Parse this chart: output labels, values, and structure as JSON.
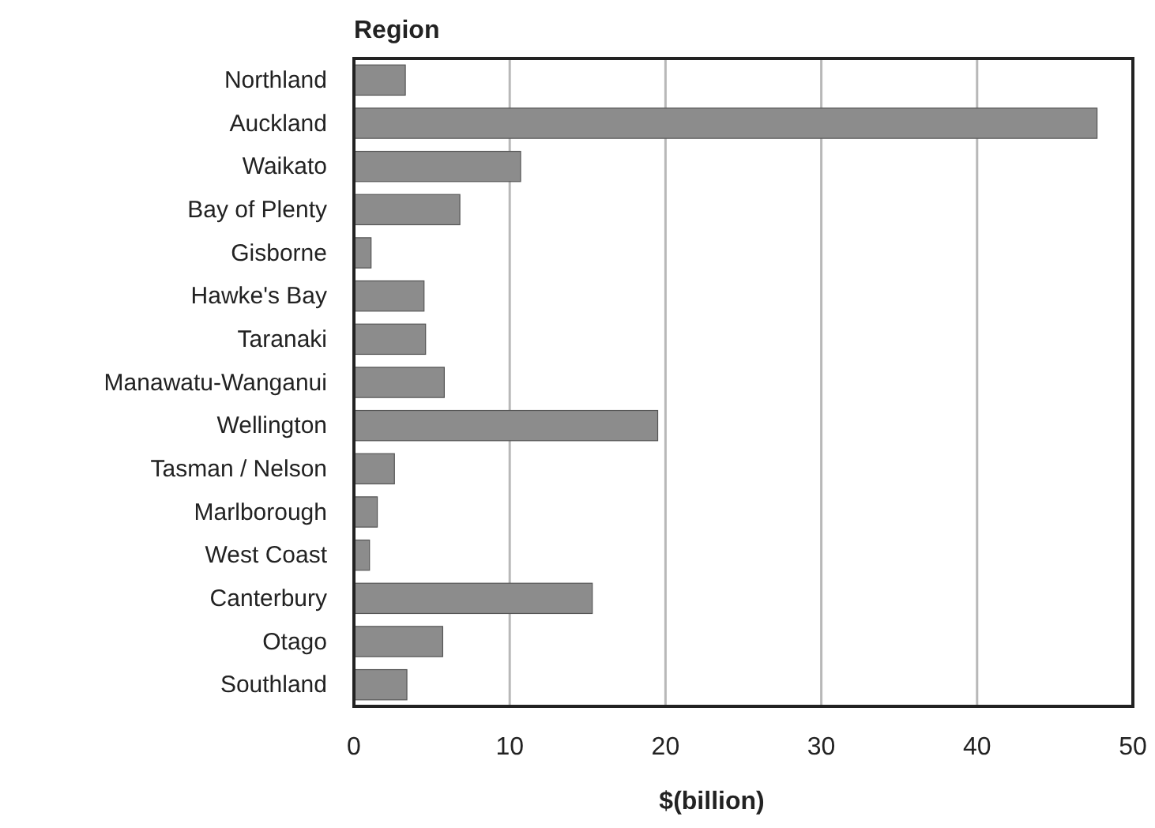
{
  "chart_data": {
    "type": "bar",
    "orientation": "horizontal",
    "title": "Region",
    "xlabel": "$(billion)",
    "categories": [
      "Northland",
      "Auckland",
      "Waikato",
      "Bay of Plenty",
      "Gisborne",
      "Hawke's Bay",
      "Taranaki",
      "Manawatu-Wanganui",
      "Wellington",
      "Tasman / Nelson",
      "Marlborough",
      "West Coast",
      "Canterbury",
      "Otago",
      "Southland"
    ],
    "values": [
      3.3,
      47.7,
      10.7,
      6.8,
      1.1,
      4.5,
      4.6,
      5.8,
      19.5,
      2.6,
      1.5,
      1.0,
      15.3,
      5.7,
      3.4
    ],
    "color": "#8c8c8c",
    "xlim": [
      0,
      50
    ],
    "xticks": [
      0,
      10,
      20,
      30,
      40,
      50
    ],
    "grid": "x"
  }
}
